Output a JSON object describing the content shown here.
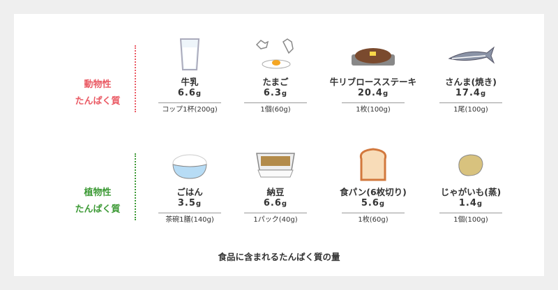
{
  "categories": {
    "animal": [
      "動物性",
      "たんぱく質"
    ],
    "plant": [
      "植物性",
      "たんぱく質"
    ]
  },
  "colors": {
    "animal": "#ea5a64",
    "plant": "#3d9a36"
  },
  "animal_items": [
    {
      "name": "牛乳",
      "value": "6.6",
      "unit": "g",
      "portion": "コップ1杯(200g)",
      "icon": "milk-glass-icon"
    },
    {
      "name": "たまご",
      "value": "6.3",
      "unit": "g",
      "portion": "1個(60g)",
      "icon": "egg-icon"
    },
    {
      "name": "牛リブロースステーキ",
      "value": "20.4",
      "unit": "g",
      "portion": "1枚(100g)",
      "icon": "steak-icon"
    },
    {
      "name": "さんま(焼き)",
      "value": "17.4",
      "unit": "g",
      "portion": "1尾(100g)",
      "icon": "saury-fish-icon"
    }
  ],
  "plant_items": [
    {
      "name": "ごはん",
      "value": "3.5",
      "unit": "g",
      "portion": "茶碗1膳(140g)",
      "icon": "rice-bowl-icon"
    },
    {
      "name": "納豆",
      "value": "6.6",
      "unit": "g",
      "portion": "1パック(40g)",
      "icon": "natto-icon"
    },
    {
      "name": "食パン(6枚切り)",
      "value": "5.6",
      "unit": "g",
      "portion": "1枚(60g)",
      "icon": "bread-icon"
    },
    {
      "name": "じゃがいも(蒸)",
      "value": "1.4",
      "unit": "g",
      "portion": "1個(100g)",
      "icon": "potato-icon"
    }
  ],
  "caption": "食品に含まれるたんぱく質の量"
}
